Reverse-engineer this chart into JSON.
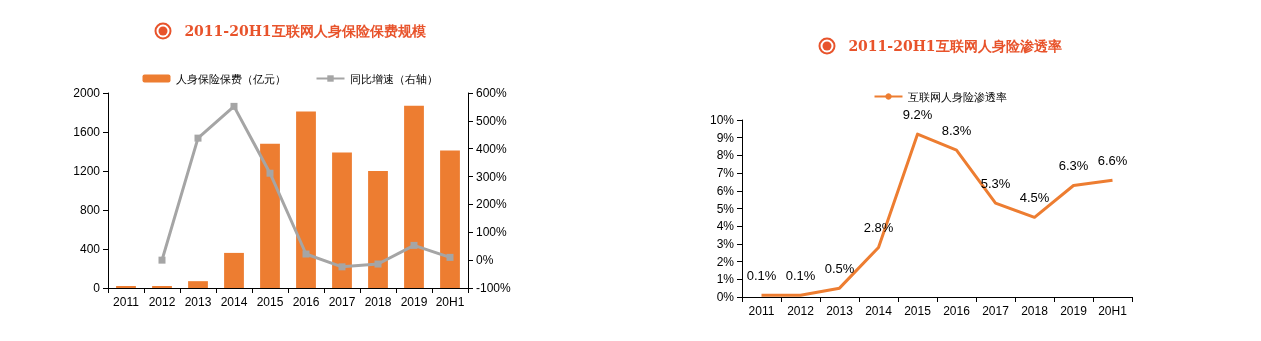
{
  "chart_data": [
    {
      "type": "bar",
      "title": "2011-20H1互联网人身保险保费规模",
      "categories": [
        "2011",
        "2012",
        "2013",
        "2014",
        "2015",
        "2016",
        "2017",
        "2018",
        "2019",
        "20H1"
      ],
      "series": [
        {
          "name": "人身保险保费（亿元）",
          "color": "#ed7d31",
          "values": [
            20,
            20,
            70,
            360,
            1480,
            1810,
            1390,
            1200,
            1870,
            1410
          ]
        },
        {
          "name": "同比增速（右轴）",
          "type": "line",
          "axis": "y2",
          "color": "#a5a5a5",
          "values": [
            null,
            0,
            438,
            552,
            312,
            22,
            -24,
            -14,
            53,
            10
          ]
        }
      ],
      "ylim": [
        0,
        2000
      ],
      "yticks": [
        0,
        400,
        800,
        1200,
        1600,
        2000
      ],
      "y2lim": [
        -100,
        600
      ],
      "y2ticks": [
        {
          "value": -100,
          "label": "-100%"
        },
        {
          "value": 0,
          "label": "0%"
        },
        {
          "value": 100,
          "label": "100%"
        },
        {
          "value": 200,
          "label": "200%"
        },
        {
          "value": 300,
          "label": "300%"
        },
        {
          "value": 400,
          "label": "400%"
        },
        {
          "value": 500,
          "label": "500%"
        },
        {
          "value": 600,
          "label": "600%"
        }
      ],
      "marker": "square",
      "legend": "top",
      "grid": false
    },
    {
      "type": "line",
      "title": "2011-20H1互联网人身险渗透率",
      "categories": [
        "2011",
        "2012",
        "2013",
        "2014",
        "2015",
        "2016",
        "2017",
        "2018",
        "2019",
        "20H1"
      ],
      "series": [
        {
          "name": "互联网人身险渗透率",
          "color": "#ed7d31",
          "values": [
            0.1,
            0.1,
            0.5,
            2.8,
            9.2,
            8.3,
            5.3,
            4.5,
            6.3,
            6.6
          ],
          "value_labels": [
            "0.1%",
            "0.1%",
            "0.5%",
            "2.8%",
            "9.2%",
            "8.3%",
            "5.3%",
            "4.5%",
            "6.3%",
            "6.6%"
          ]
        }
      ],
      "ylim": [
        0,
        10
      ],
      "yticks": [
        {
          "value": 0,
          "label": "0%"
        },
        {
          "value": 1,
          "label": "1%"
        },
        {
          "value": 2,
          "label": "2%"
        },
        {
          "value": 3,
          "label": "3%"
        },
        {
          "value": 4,
          "label": "4%"
        },
        {
          "value": 5,
          "label": "5%"
        },
        {
          "value": 6,
          "label": "6%"
        },
        {
          "value": 7,
          "label": "7%"
        },
        {
          "value": 8,
          "label": "8%"
        },
        {
          "value": 9,
          "label": "9%"
        },
        {
          "value": 10,
          "label": "10%"
        }
      ],
      "marker": "none",
      "legend": "top",
      "grid": false
    }
  ]
}
